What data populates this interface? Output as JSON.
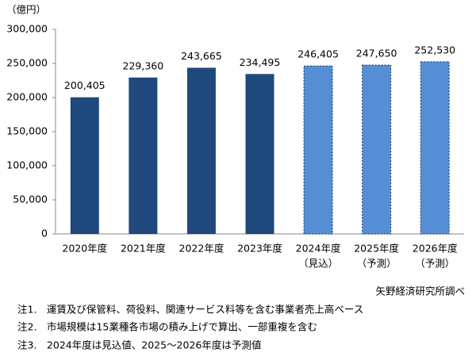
{
  "chart_data": {
    "type": "bar",
    "y_axis_label": "（億円）",
    "categories": [
      "2020年度",
      "2021年度",
      "2022年度",
      "2023年度",
      "2024年度",
      "2025年度",
      "2026年度"
    ],
    "category_sublabels": [
      null,
      null,
      null,
      null,
      "（見込）",
      "（予測）",
      "（予測）"
    ],
    "values": [
      200405,
      229360,
      243665,
      234495,
      246405,
      247650,
      252530
    ],
    "value_labels": [
      "200,405",
      "229,360",
      "243,665",
      "234,495",
      "246,405",
      "247,650",
      "252,530"
    ],
    "colors": [
      "#1f497d",
      "#1f497d",
      "#1f497d",
      "#1f497d",
      "#558ed5",
      "#558ed5",
      "#558ed5"
    ],
    "bar_styles": [
      "solid",
      "solid",
      "solid",
      "solid",
      "dashed",
      "dashed",
      "dashed"
    ],
    "ylim": [
      0,
      300000
    ],
    "yticks": [
      0,
      {
        "value": 50000,
        "label": "50,000"
      },
      {
        "value": 100000,
        "label": "100,000"
      },
      {
        "value": 150000,
        "label": "150,000"
      },
      {
        "value": 200000,
        "label": "200,000"
      },
      {
        "value": 250000,
        "label": "250,000"
      },
      {
        "value": 300000,
        "label": "300,000"
      }
    ],
    "grid": false,
    "source": "矢野経済研究所調べ"
  },
  "notes": [
    "注1.　運賃及び保管料、荷役料、関連サービス料等を含む事業者売上高ベース",
    "注2.　市場規模は15業種各市場の積み上げで算出、一部重複を含む",
    "注3.　2024年度は見込値、2025～2026年度は予測値"
  ]
}
